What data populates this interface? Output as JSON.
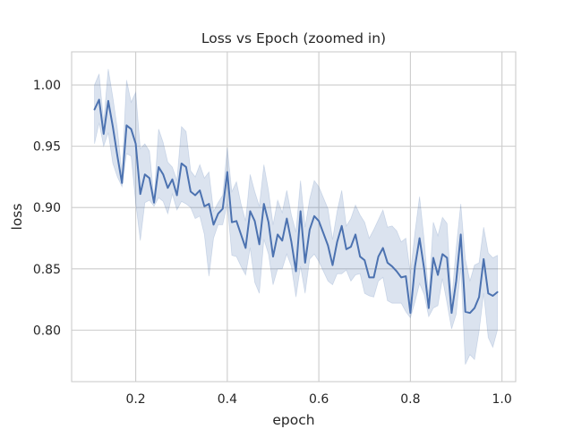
{
  "chart_data": {
    "type": "line",
    "title": "Loss vs Epoch (zoomed in)",
    "xlabel": "epoch",
    "ylabel": "loss",
    "xlim": [
      0.06,
      1.03
    ],
    "ylim": [
      0.758,
      1.027
    ],
    "xticks": [
      0.2,
      0.4,
      0.6,
      0.8,
      1.0
    ],
    "xtick_labels": [
      "0.2",
      "0.4",
      "0.6",
      "0.8",
      "1.0"
    ],
    "yticks": [
      0.8,
      0.85,
      0.9,
      0.95,
      1.0
    ],
    "ytick_labels": [
      "0.80",
      "0.85",
      "0.90",
      "0.95",
      "1.00"
    ],
    "grid": true,
    "series": [
      {
        "color": "#4c72b0",
        "band_color": "#4c72b0",
        "x": [
          0.11,
          0.12,
          0.13,
          0.14,
          0.15,
          0.16,
          0.17,
          0.18,
          0.19,
          0.2,
          0.21,
          0.22,
          0.23,
          0.24,
          0.25,
          0.26,
          0.27,
          0.28,
          0.29,
          0.3,
          0.31,
          0.32,
          0.33,
          0.34,
          0.35,
          0.36,
          0.37,
          0.38,
          0.39,
          0.4,
          0.41,
          0.42,
          0.43,
          0.44,
          0.45,
          0.46,
          0.47,
          0.48,
          0.49,
          0.5,
          0.51,
          0.52,
          0.53,
          0.54,
          0.55,
          0.56,
          0.57,
          0.58,
          0.59,
          0.6,
          0.61,
          0.62,
          0.63,
          0.64,
          0.65,
          0.66,
          0.67,
          0.68,
          0.69,
          0.7,
          0.71,
          0.72,
          0.73,
          0.74,
          0.75,
          0.76,
          0.77,
          0.78,
          0.79,
          0.8,
          0.81,
          0.82,
          0.83,
          0.84,
          0.85,
          0.86,
          0.87,
          0.88,
          0.89,
          0.9,
          0.91,
          0.92,
          0.93,
          0.94,
          0.95,
          0.96,
          0.97,
          0.98,
          0.99
        ],
        "y": [
          0.98,
          0.988,
          0.96,
          0.987,
          0.966,
          0.942,
          0.92,
          0.967,
          0.964,
          0.952,
          0.911,
          0.927,
          0.924,
          0.904,
          0.933,
          0.927,
          0.916,
          0.923,
          0.91,
          0.936,
          0.933,
          0.913,
          0.91,
          0.914,
          0.901,
          0.903,
          0.886,
          0.895,
          0.899,
          0.929,
          0.888,
          0.889,
          0.878,
          0.867,
          0.897,
          0.889,
          0.87,
          0.903,
          0.888,
          0.86,
          0.878,
          0.873,
          0.891,
          0.872,
          0.848,
          0.897,
          0.855,
          0.882,
          0.893,
          0.889,
          0.879,
          0.869,
          0.853,
          0.872,
          0.885,
          0.866,
          0.868,
          0.878,
          0.86,
          0.857,
          0.843,
          0.843,
          0.86,
          0.867,
          0.855,
          0.852,
          0.848,
          0.843,
          0.844,
          0.814,
          0.852,
          0.875,
          0.85,
          0.818,
          0.859,
          0.845,
          0.862,
          0.859,
          0.814,
          0.84,
          0.878,
          0.815,
          0.814,
          0.818,
          0.827,
          0.858,
          0.83,
          0.828,
          0.831
        ],
        "lower": [
          0.952,
          0.969,
          0.95,
          0.961,
          0.936,
          0.925,
          0.917,
          0.944,
          0.942,
          0.904,
          0.873,
          0.904,
          0.906,
          0.901,
          0.908,
          0.905,
          0.895,
          0.911,
          0.898,
          0.905,
          0.903,
          0.9,
          0.891,
          0.893,
          0.878,
          0.844,
          0.875,
          0.886,
          0.886,
          0.903,
          0.861,
          0.86,
          0.852,
          0.845,
          0.867,
          0.839,
          0.83,
          0.874,
          0.862,
          0.837,
          0.85,
          0.85,
          0.862,
          0.852,
          0.827,
          0.852,
          0.83,
          0.858,
          0.862,
          0.856,
          0.848,
          0.84,
          0.837,
          0.846,
          0.846,
          0.849,
          0.84,
          0.845,
          0.846,
          0.83,
          0.828,
          0.827,
          0.84,
          0.843,
          0.824,
          0.822,
          0.822,
          0.822,
          0.815,
          0.81,
          0.823,
          0.838,
          0.829,
          0.811,
          0.818,
          0.82,
          0.842,
          0.822,
          0.801,
          0.813,
          0.851,
          0.772,
          0.78,
          0.776,
          0.799,
          0.83,
          0.794,
          0.786,
          0.8
        ],
        "upper": [
          1.0,
          1.009,
          0.97,
          1.013,
          0.99,
          0.964,
          0.928,
          1.004,
          0.986,
          0.994,
          0.948,
          0.952,
          0.946,
          0.907,
          0.964,
          0.953,
          0.937,
          0.933,
          0.922,
          0.966,
          0.962,
          0.93,
          0.925,
          0.935,
          0.924,
          0.929,
          0.897,
          0.904,
          0.91,
          0.949,
          0.913,
          0.921,
          0.903,
          0.889,
          0.927,
          0.913,
          0.901,
          0.935,
          0.914,
          0.886,
          0.906,
          0.896,
          0.914,
          0.894,
          0.88,
          0.922,
          0.884,
          0.907,
          0.922,
          0.917,
          0.908,
          0.899,
          0.874,
          0.897,
          0.914,
          0.885,
          0.891,
          0.902,
          0.894,
          0.888,
          0.875,
          0.882,
          0.89,
          0.898,
          0.884,
          0.885,
          0.881,
          0.872,
          0.875,
          0.846,
          0.88,
          0.909,
          0.874,
          0.828,
          0.888,
          0.877,
          0.892,
          0.887,
          0.824,
          0.867,
          0.903,
          0.858,
          0.84,
          0.853,
          0.855,
          0.884,
          0.863,
          0.859,
          0.861
        ]
      }
    ]
  }
}
